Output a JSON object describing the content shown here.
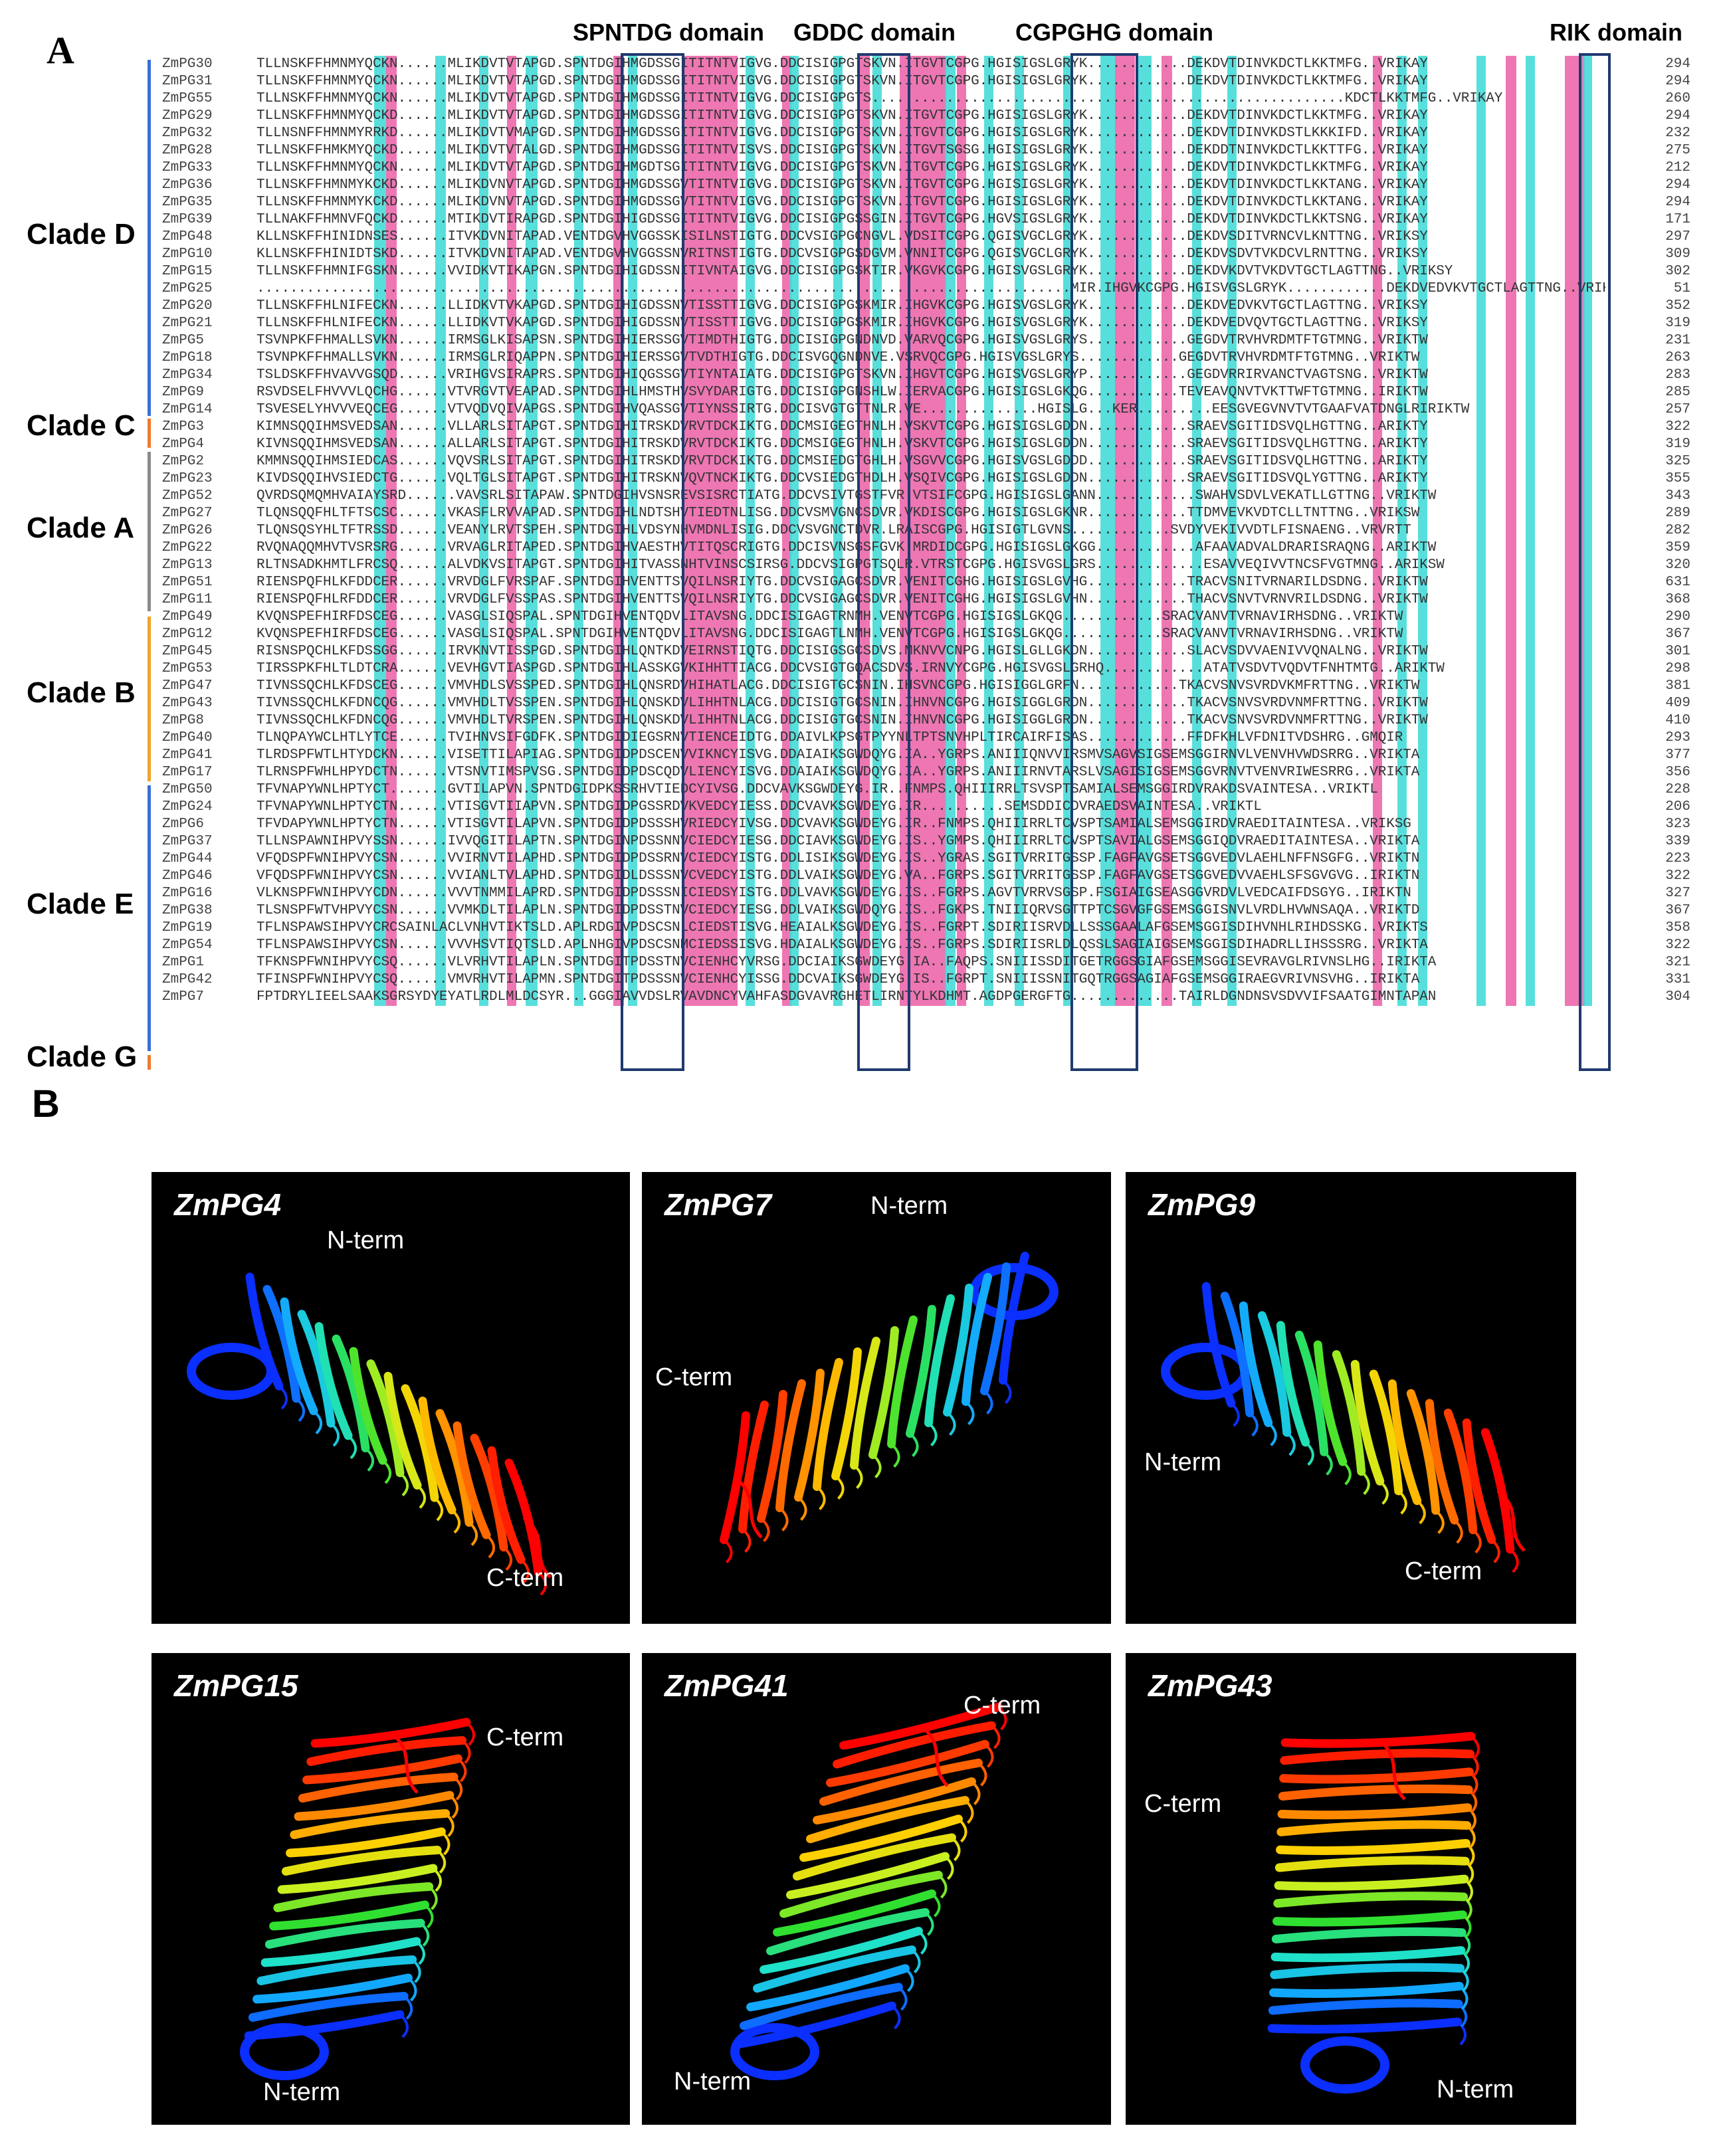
{
  "panel_a": {
    "letter": "A",
    "domains": [
      "SPNTDG domain",
      "GDDC domain",
      "CGPGHG domain",
      "RIK domain"
    ],
    "clades": [
      "Clade D",
      "Clade C",
      "Clade A",
      "Clade B",
      "Clade E",
      "Clade G"
    ],
    "clade_colors": {
      "Clade D": "#3a6fd8",
      "Clade C": "#f07a2b",
      "Clade A": "#8a8a8a",
      "Clade B": "#f0a52b",
      "Clade E": "#3a6fd8",
      "Clade G": "#f07a2b"
    },
    "sequences": [
      {
        "name": "ZmPG30",
        "seq": "TLLNSKFFHMNMYQCKN......MLIKDVTVTAPGD.SPNTDGIHMGDSSGITITNTVIGVG.DDCISIGPGTSKVN.ITGVTCGPG.HGISIGSLGRYK............DEKDVTDINVKDCTLKKTMFG..VRIKAY",
        "len": "294"
      },
      {
        "name": "ZmPG31",
        "seq": "TLLNSKFFHMNMYQCKN......MLIKDVTVTAPGD.SPNTDGIHMGDSSGITITNTVIGVG.DDCISIGPGTSKVN.ITGVTCGPG.HGISIGSLGRYK............DEKDVTDINVKDCTLKKTMFG..VRIKAY",
        "len": "294"
      },
      {
        "name": "ZmPG55",
        "seq": "TLLNSKFFHMNMYQCKN......MLIKDVTVTAPGD.SPNTDGIHMGDSSGITITNTVIGVG.DDCISIGPGTS.........................................................KDCTLKKTMFG..VRIKAY",
        "len": "260"
      },
      {
        "name": "ZmPG29",
        "seq": "TLLNSKFFHMNMYQCKD......MLIKDVTVTAPGD.SPNTDGIHMGDSSGITITNTVIGVG.DDCISIGPGTSKVN.ITGVTCGPG.HGISIGSLGRYK............DEKDVTDINVKDCTLKKTMFG..VRIKAY",
        "len": "294"
      },
      {
        "name": "ZmPG32",
        "seq": "TLLNSNFFHMNMYRRKD......MLIKDVTVMAPGD.SPNTDGIHMGDSSGITITNTVIGVG.DDCISIGPGTSKVN.ITGVTCGPG.HGISIGSLGRYK............DEKDVTDINVKDSTLKKKIFD..VRIKAY",
        "len": "232"
      },
      {
        "name": "ZmPG28",
        "seq": "TLLNSKFFHMKMYQCKD......MLIKDVTVTALGD.SPNTDGIHMGDSSGITITNTVISVS.DDCISIGPGTSKVN.ITGVTSGSG.HGISIGSLGRYK............DEKDDTNINVKDCTLKKTTFG..VRIKAY",
        "len": "275"
      },
      {
        "name": "ZmPG33",
        "seq": "TLLNSKFFHMNMYQCKN......MLIKDVTVTAPGD.SPNTDGIHMGDTSGITITNTVIGVG.DDCISIGPGTSKVN.ITGVTCGPG.HGISIGSLGRYK............DEKDVTDINVKDCTLKKTMFG..VRIKAY",
        "len": "212"
      },
      {
        "name": "ZmPG36",
        "seq": "TLLNSKFFHMNMYKCKD......MLIKDVNVTAPGD.SPNTDGIHMGDSSGVTITNTVIGVG.DDCISIGPGTSKVN.ITGVTCGPG.HGISIGSLGRYK............DEKDVTDINVKDCTLKKTANG..VRIKAY",
        "len": "294"
      },
      {
        "name": "ZmPG35",
        "seq": "TLLNSKFFHMNMYKCKD......MLIKDVNVTAPGD.SPNTDGIHMGDSSGVTITNTVIGVG.DDCISIGPGTSKVN.ITGVTCGPG.HGISIGSLGRYK............DEKDVTDINVKDCTLKKTANG..VRIKAY",
        "len": "294"
      },
      {
        "name": "ZmPG39",
        "seq": "TLLNAKFFHMNVFQCKD......MTIKDVTIRAPGD.SPNTDGIHIGDSSGITITNTVIGVG.DDCISIGPGSSGIN.ITGVTCGPG.HGVSIGSLGRYK............DEKDVTDINVKDCTLKKTSNG..VRIKAY",
        "len": "171"
      },
      {
        "name": "ZmPG48",
        "seq": "KLLNSKFFHINIDNSES......ITVKDVNITAPAD.VENTDGVHVGGSSKISILNSTIGTG.DDCVSIGPGCNGVL.VDSITCGPG.QGISVGCLGRYK............DEKDVSDITVRNCVLKNTTNG..VRIKSY",
        "len": "297"
      },
      {
        "name": "ZmPG10",
        "seq": "KLLNSKFFHINIDTSKD......ITVKDVNITAPAD.VENTDGVHVGGSSNVRITNSTIGTG.DDCVSIGPGSDGVM.VNNITCGPG.QGISVGCLGRYK............DEKDVSDVTVKDCVLRNTTNG..VRIKSY",
        "len": "309"
      },
      {
        "name": "ZmPG15",
        "seq": "TLLNSKFFHMNIFGSKN......VVIDKVTIKAPGN.SPNTDGIHIGDSSNITIVNTAIGVG.DDCISIGPGSKTIR.VKGVKCGPG.HGISVGSLGRYK............DEKDVKDVTVKDVTGCTLAGTTNG..VRIKSY",
        "len": "302"
      },
      {
        "name": "ZmPG25",
        "seq": "..................................................................................................MIR.IHGVKCGPG.HGISVGSLGRYK............DEKDVEDVKVTGCTLAGTTNG..VRIKSY",
        "len": "51"
      },
      {
        "name": "ZmPG20",
        "seq": "TLLNSKFFHLNIFECKN......LLIDKVTVKAPGD.SPNTDGIHIGDSSNVTISSTTIGVG.DDCISIGPGSKMIR.IHGVKCGPG.HGISVGSLGRYK............DEKDVEDVKVTGCTLAGTTNG..VRIKSY",
        "len": "352"
      },
      {
        "name": "ZmPG21",
        "seq": "TLLNSKFFHLNIFECKN......LLIDKVTVKAPGD.SPNTDGIHIGDSSNVTISSTTIGVG.DDCISIGPGSKMIR.IHGVKCGPG.HGISVGSLGRYK............DEKDVEDVQVTGCTLAGTTNG..VRIKSY",
        "len": "319"
      },
      {
        "name": "ZmPG5",
        "seq": "TSVNPKFFHMALLSVKN......IRMSGLKISAPSN.SPNTDGIHIERSSGVTIMDTHIGTG.DDCISIGPGNDNVD.VARVQCGPG.HGISVGSLGRYS............GEGDVTRVHVRDMTFTGTMNG..VRIKTW",
        "len": "231"
      },
      {
        "name": "ZmPG18",
        "seq": "TSVNPKFFHMALLSVKN......IRMSGLRIQAPPN.SPNTDGIHIERSSGVTVDTHIGTG.DDCISVGQGNDNVE.VSRVQCGPG.HGISVGSLGRYS............GEGDVTRVHVRDMTFTGTMNG..VRIKTW",
        "len": "263"
      },
      {
        "name": "ZmPG34",
        "seq": "TSLDSKFFHVAVVGSQD......VRIHGVSIRAPRS.SPNTDGIHIQGSSGVTIYNTAIATG.DDCISIGPGTSKVN.IHGVTCGPG.HGISVGSLGRYP............GEGDVRRIRVANCTVAGTSNG..VRIKTW",
        "len": "283"
      },
      {
        "name": "ZmPG9",
        "seq": "RSVDSELFHVVVLQCHG......VTVRGVTVEAPAD.SPNTDGIHLHMSTHVSVYDARIGTG.DDCISIGPGNSHLW.IERVACGPG.HGISIGSLGKQG...........TEVEAVQNVTVKTTWFTGTMNG..IRIKTW",
        "len": "285"
      },
      {
        "name": "ZmPG14",
        "seq": "TSVESELYHVVVEQCEG......VTVQDVQIVAPGS.SPNTDGIHVQASSGVTIYNSSIRTG.DDCISVGTGTTNLR.VE..............HGISLG...KER.........EESGVEGVNVTVTGAAFVATDNGLRIRIKTW",
        "len": "257"
      },
      {
        "name": "ZmPG3",
        "seq": "KIMNSQQIHMSVEDSAN......VLLARLSITAPGT.SPNTDGIHITRSKDVRVTDCKIKTG.DDCMSIGEGTHNLH.VSKVTCGPG.HGISIGSLGDDN............SRAEVSGITIDSVQLHGTTNG..ARIKTY",
        "len": "322"
      },
      {
        "name": "ZmPG4",
        "seq": "KIVNSQQIHMSVEDSAN......ALLARLSITAPGT.SPNTDGIHITRSKDVRVTDCKIKTG.DDCMSIGEGTHNLH.VSKVTCGPG.HGISIGSLGDDN............SRAEVSGITIDSVQLHGTTNG..ARIKTY",
        "len": "319"
      },
      {
        "name": "ZmPG2",
        "seq": "KMMNSQQIHMSIEDCAS......VQVSRLSITAPGT.SPNTDGIHITRSKDVRVTDCKIKTG.DDCMSIEDGTGHLH.VSGVVCGPG.HGISVGSLGDDD............SRAEVSGITIDSVQLHGTTNG..ARIKTY",
        "len": "325"
      },
      {
        "name": "ZmPG23",
        "seq": "KIVDSQQIHVSIEDCTG......VQLTGLSITAPGT.SPNTDGIHITRSKNVQVTNCKIKTG.DDCVSIEDGTHDLH.VSQIVCGPG.HGISIGSLGDDN............SRAEVSGITIDSVQLYGTTNG..ARIKTY",
        "len": "355"
      },
      {
        "name": "ZmPG52",
        "seq": "QVRDSQMQMHVAIAYSRD......VAVSRLSITAPAW.SPNTDGIHVSNSREVSISRCTIATG.DDCVSIVTGSTFVR.VTSIFCGPG.HGISIGSLGANN............SWAHVSDVLVEKATLLGTTNG..VRIKTW",
        "len": "343"
      },
      {
        "name": "ZmPG27",
        "seq": "TLQNSQQFHLTFTSCSC......VKASFLRVVAPAD.SPNTDGIHLNDTSHVTIEDTNLISG.DDCVSMVGNCSDVR.VKDISCGPG.HGISIGSLGKNR............TTDMVEVKVDTCLLTNTTNG..VRIKSW",
        "len": "289"
      },
      {
        "name": "ZmPG26",
        "seq": "TLQNSQSYHLTFTRSSD......VEANYLRVTSPEH.SPNTDGIHLVDSYNHVMDNLISIG.DDCVSVGNCTDVR.LRAISCGPG.HGISIGTLGVNS............SVDYVEKIVVDTLFISNAENG..VRVRTT",
        "len": "282"
      },
      {
        "name": "ZmPG22",
        "seq": "RVQNAQQMHVTVSRSRG......VRVAGLRITAPED.SPNTDGIHVAESTHVTITQSCRIGTG.DDCISVNSGSFGVK.MRDIDCGPG.HGISIGSLGKGG............AFAAVADVALDRARISRAQNG..ARIKTW",
        "len": "359"
      },
      {
        "name": "ZmPG13",
        "seq": "RLTNSADKHMTLFRCSQ......ALVDKVSITAPGT.SPNTDGIHITVASSNHTVINSCSIRSG.DDCVSIGPGTSQLR.VTRSTCGPG.HGISVGSLGRS.............ESAVVEQIVVTNCSFVGTMNG..ARIKSW",
        "len": "320"
      },
      {
        "name": "ZmPG51",
        "seq": "RIENSPQFHLKFDDCER......VRVDGLFVRSPAF.SPNTDGIHVENTTSVQILNSRIYTG.DDCVSIGAGCSDVR.VENITCGHG.HGISIGSLGVHG............TRACVSNITVRNARILDSDNG..VRIKTW",
        "len": "631"
      },
      {
        "name": "ZmPG11",
        "seq": "RIENSPQFHLRFDDCER......VRVDGLFVSSPAS.SPNTDGIHVENTTSVQILNSRIYTG.DDCVSIGAGCSDVR.VENITCGHG.HGISIGSLGVHN............THACVSNVTVRNVRILDSDNG..VRIKTW",
        "len": "368"
      },
      {
        "name": "ZmPG49",
        "seq": "KVQNSPEFHIRFDSCEG......VASGLSIQSPAL.SPNTDGIHVENTQDVLITAVSNG.DDCISIGAGTRNMH.VENVTCGPG.HGISIGSLGKQG............SRACVANVTVRNAVIRHSDNG..VRIKTW",
        "len": "290"
      },
      {
        "name": "ZmPG12",
        "seq": "KVQNSPEFHIRFDSCEG......VASGLSIQSPAL.SPNTDGIHVENTQDVLITAVSNG.DDCISIGAGTLNMH.VENVTCGPG.HGISIGSLGKQG............SRACVANVTVRNAVIRHSDNG..VRIKTW",
        "len": "367"
      },
      {
        "name": "ZmPG45",
        "seq": "RISNSPQCHLKFDSSGG......IRVKNVTISSPGD.SPNTDGIHLQNTKDVEIRNSTIQTG.DDCISIGSGCSDVS.MKNVVCNPG.HGISLGLLGKDN............SLACVSDVVAENIVVQNALNG..VRIKTW",
        "len": "301"
      },
      {
        "name": "ZmPG53",
        "seq": "TIRSSPKFHLTLDTCRA......VEVHGVTIASPGD.SPNTDGIHLASSKGVKIHHTTIACG.DDCVSIGTGQACSDVS.IRNVYCGPG.HGISVGSLGRHQ............ATATVSDVTVQDVTFNHTMTG..ARIKTW",
        "len": "298"
      },
      {
        "name": "ZmPG47",
        "seq": "TIVNSSQCHLKFDSCEG......VMVHDLSVSSPED.SPNTDGIHLQNSRDVHIHATLACG.DDCISIGTGCSNIN.IHSVNCGPG.HGISIGGLGRFN............TKACVSNVSVRDVKMFRTTNG..VRIKTW",
        "len": "381"
      },
      {
        "name": "ZmPG43",
        "seq": "TIVNSSQCHLKFDNCQG......VMVHDLTVSSPEN.SPNTDGIHLQNSKDVLIHHTNLACG.DDCISIGTGCSNIN.IHNVNCGPG.HGISIGGLGRDN............TKACVSNVSVRDVNMFRTTNG..VRIKTW",
        "len": "409"
      },
      {
        "name": "ZmPG8",
        "seq": "TIVNSSQCHLKFDNCQG......VMVHDLTVRSPEN.SPNTDGIHLQNSKDVLIHHTNLACG.DDCISIGTGCSNIN.IHNVNCGPG.HGISIGGLGRDN............TKACVSNVSVRDVNMFRTTNG..VRIKTW",
        "len": "410"
      },
      {
        "name": "ZmPG40",
        "seq": "TLNQPAYWCLHTLYTCE......TVIHNVSIFGDFK.SPNTDGIDIEGSRNVTIENCEIDTG.DDAIVLKPSGTPYYNLTPTSNVHPLTIRCAIRFISAS............FFDFKHLVFDNITVDSHRG..GMQIR",
        "len": "293"
      },
      {
        "name": "ZmPG41",
        "seq": "TLRDSPFWTLHTYDCKN......VISETTILAPIAG.SPNTDGIDPDSCENVVIKNCYISVG.DDAIAIKSGWDQYG.IA..YGRPS.ANIIIQNVVIRSMVSAGVSIGSEMSGGIRNVLVENVHVWDSRRG..VRIKTA",
        "len": "377"
      },
      {
        "name": "ZmPG17",
        "seq": "TLRNSPFWHLHPYDCTN......VTSNVTIMSPVSG.SPNTDGIDPDSCQDVLIENCYISVG.DDAIAIKSGWDQYG.IA..YGRPS.ANIIIRNVTARSLVSAGISIGSEMSGGVRNVTVENVRIWESRRG..VRIKTA",
        "len": "356"
      },
      {
        "name": "ZmPG50",
        "seq": "TFVNAPYWNLHPTYCT.......GVTILAPVN.SPNTDGIDPKSSRHVTIEDCYIVSG.DDCVAVKSGWDEYG.IR..FNMPS.QHIIIRRLTSVSPTSAMIALSEMSGGIRDVRAKDSVAINTESA..VRIKTL",
        "len": "228"
      },
      {
        "name": "ZmPG24",
        "seq": "TFVNAPYWNLHPTYCTN......VTISGVTIIAPVN.SPNTDGIDPGSSRDVKVEDCYIESS.DDCVAVKSGWDEYG.IR..........SEMSDDICDVRAEDSVAINTESA..VRIKTL",
        "len": "206"
      },
      {
        "name": "ZmPG6",
        "seq": "TFVDAPYWNLHPTYCTN......VTISGVTILAPVN.SPNTDGIDPDSSSHVRIEDCYIVSG.DDCVAVKSGWDEYG.IR..FNMPS.QHIIIRRLTCVSPTSAMIALSEMSGGIRDVRAEDITAINTESA..VRIKSG",
        "len": "323"
      },
      {
        "name": "ZmPG37",
        "seq": "TLLNSPAWNIHPVYSSN......IVVQGITILAPTN.SPNTDGINPDSSNNVCIEDCYIESG.DDCIAVKSGWDEYG.IS..YGMPS.QHIIIRRLTCVSPTSAVIALGSEMSGGIQDVRAEDITAINTESA..VRIKTA",
        "len": "339"
      },
      {
        "name": "ZmPG44",
        "seq": "VFQDSPFWNIHPVYCSN......VVIRNVTILAPHD.SPNTDGIDPDSSRNVCIEDCYISTG.DDLISIKSGWDEYG.IS..YGRAS.SGITVRRITGSSP.FAGFAVGSETSGGVEDVLAEHLNFFNSGFG..VRIKTN",
        "len": "223"
      },
      {
        "name": "ZmPG46",
        "seq": "VFQDSPFWNIHPVYCSN......VVIANLTVLAPHD.SPNTDGIDLDSSSNVCVEDCYISTG.DDLVAIKSGWDEYG.VA..FGRPS.SGITVRRITGSSP.FAGFAVGSETSGGVEDVVAEHLSFSGVGVG..IRIKTN",
        "len": "322"
      },
      {
        "name": "ZmPG16",
        "seq": "VLKNSPFWNIHPVYCDN......VVVTNMMILAPRD.SPNTDGIDPDSSSNICIEDSYISTG.DDLVAVKSGWDEYG.IS..FGRPS.AGVTVRRVSGSP.FSGIAIGSEASGGVRDVLVEDCAIFDSGYG..IRIKTN",
        "len": "327"
      },
      {
        "name": "ZmPG38",
        "seq": "TLSNSPFWTVHPVYCSN......VVMKDLTILAPLN.SPNTDGIDPDSSTNVCIEDCYIESG.DDLVAIKSGWDQYG.IS..FGKPS.TNIIIQRVSGTTPTCSGVGFGSEMSGGISNVLVRDLHVWNSAQA..VRIKTD",
        "len": "367"
      },
      {
        "name": "ZmPG19",
        "seq": "TFLNSPAWSIHPVYCRCSAINLACLVNHVTIKTSLD.APLRDGIVPDSCSNLCIEDSTISVG.HEAIALKSGWDEYG.IS..FGRPT.SDIRIISRVDLLSSSGAALAFGSEMSGGISDIHVNHLRIHDSSKG..VRIKTS",
        "len": "358"
      },
      {
        "name": "ZmPG54",
        "seq": "TFLNSPAWSIHPVYCSN......VVVHSVTIQTSLD.APLNHGIVPDSCSNMCIEDSSISVG.HDAIALKSGWDEYG.IS..FGRPS.SDIRIISRLDLQSSLSAGIAIGSEMSGGISDIHADRLLIHSSSRG..VRIKTA",
        "len": "322"
      },
      {
        "name": "ZmPG1",
        "seq": "TFKNSPFWNIHPVYCSQ......VLVRHVTILAPLN.SPNTDGITPDSSTNVCIENHCYVRSG.DDCIAIKSGWDEYG.IA..FAQPS.SNIIISSDITGETRGGSGIAFGSEMSGGISEVRAVGLRIVNSLHG..IRIKTA",
        "len": "321"
      },
      {
        "name": "ZmPG42",
        "seq": "TFINSPFWNIHPVYCSQ......VMVRHVTILAPMN.SPNTDGITPDSSSNVCIENHCYISSG.DDCVAIKSGWDEYG.IS..FGRPT.SNIIISSNITGQTRGGSAGIAFGSEMSGGIRAEGVRIVNSVHG..IRIKTA",
        "len": "331"
      },
      {
        "name": "ZmPG7",
        "seq": "FPTDRYLIEELSAAKSGRSYDYEYATLRDLMLDCSYR...GGGIAVVDSLRVAVDNCYVAHFASDGVAVRGHETLIRNTYLKDHMT.AGDPGERGFTG.............TAIRLDGNDNSVSDVVIFSAATGIMNTAPAN",
        "len": "304"
      }
    ]
  },
  "panel_b": {
    "letter": "B",
    "structures": [
      {
        "name": "ZmPG4",
        "n_term": "N-term",
        "c_term": "C-term"
      },
      {
        "name": "ZmPG7",
        "n_term": "N-term",
        "c_term": "C-term"
      },
      {
        "name": "ZmPG9",
        "n_term": "N-term",
        "c_term": "C-term"
      },
      {
        "name": "ZmPG15",
        "n_term": "N-term",
        "c_term": "C-term"
      },
      {
        "name": "ZmPG41",
        "n_term": "N-term",
        "c_term": "C-term"
      },
      {
        "name": "ZmPG43",
        "n_term": "N-term",
        "c_term": "C-term"
      }
    ],
    "rainbow": [
      "#0a2fff",
      "#12a8ff",
      "#1fe0c8",
      "#30e030",
      "#c8f020",
      "#ffd000",
      "#ff8a00",
      "#ff3a00",
      "#ff0000"
    ]
  }
}
